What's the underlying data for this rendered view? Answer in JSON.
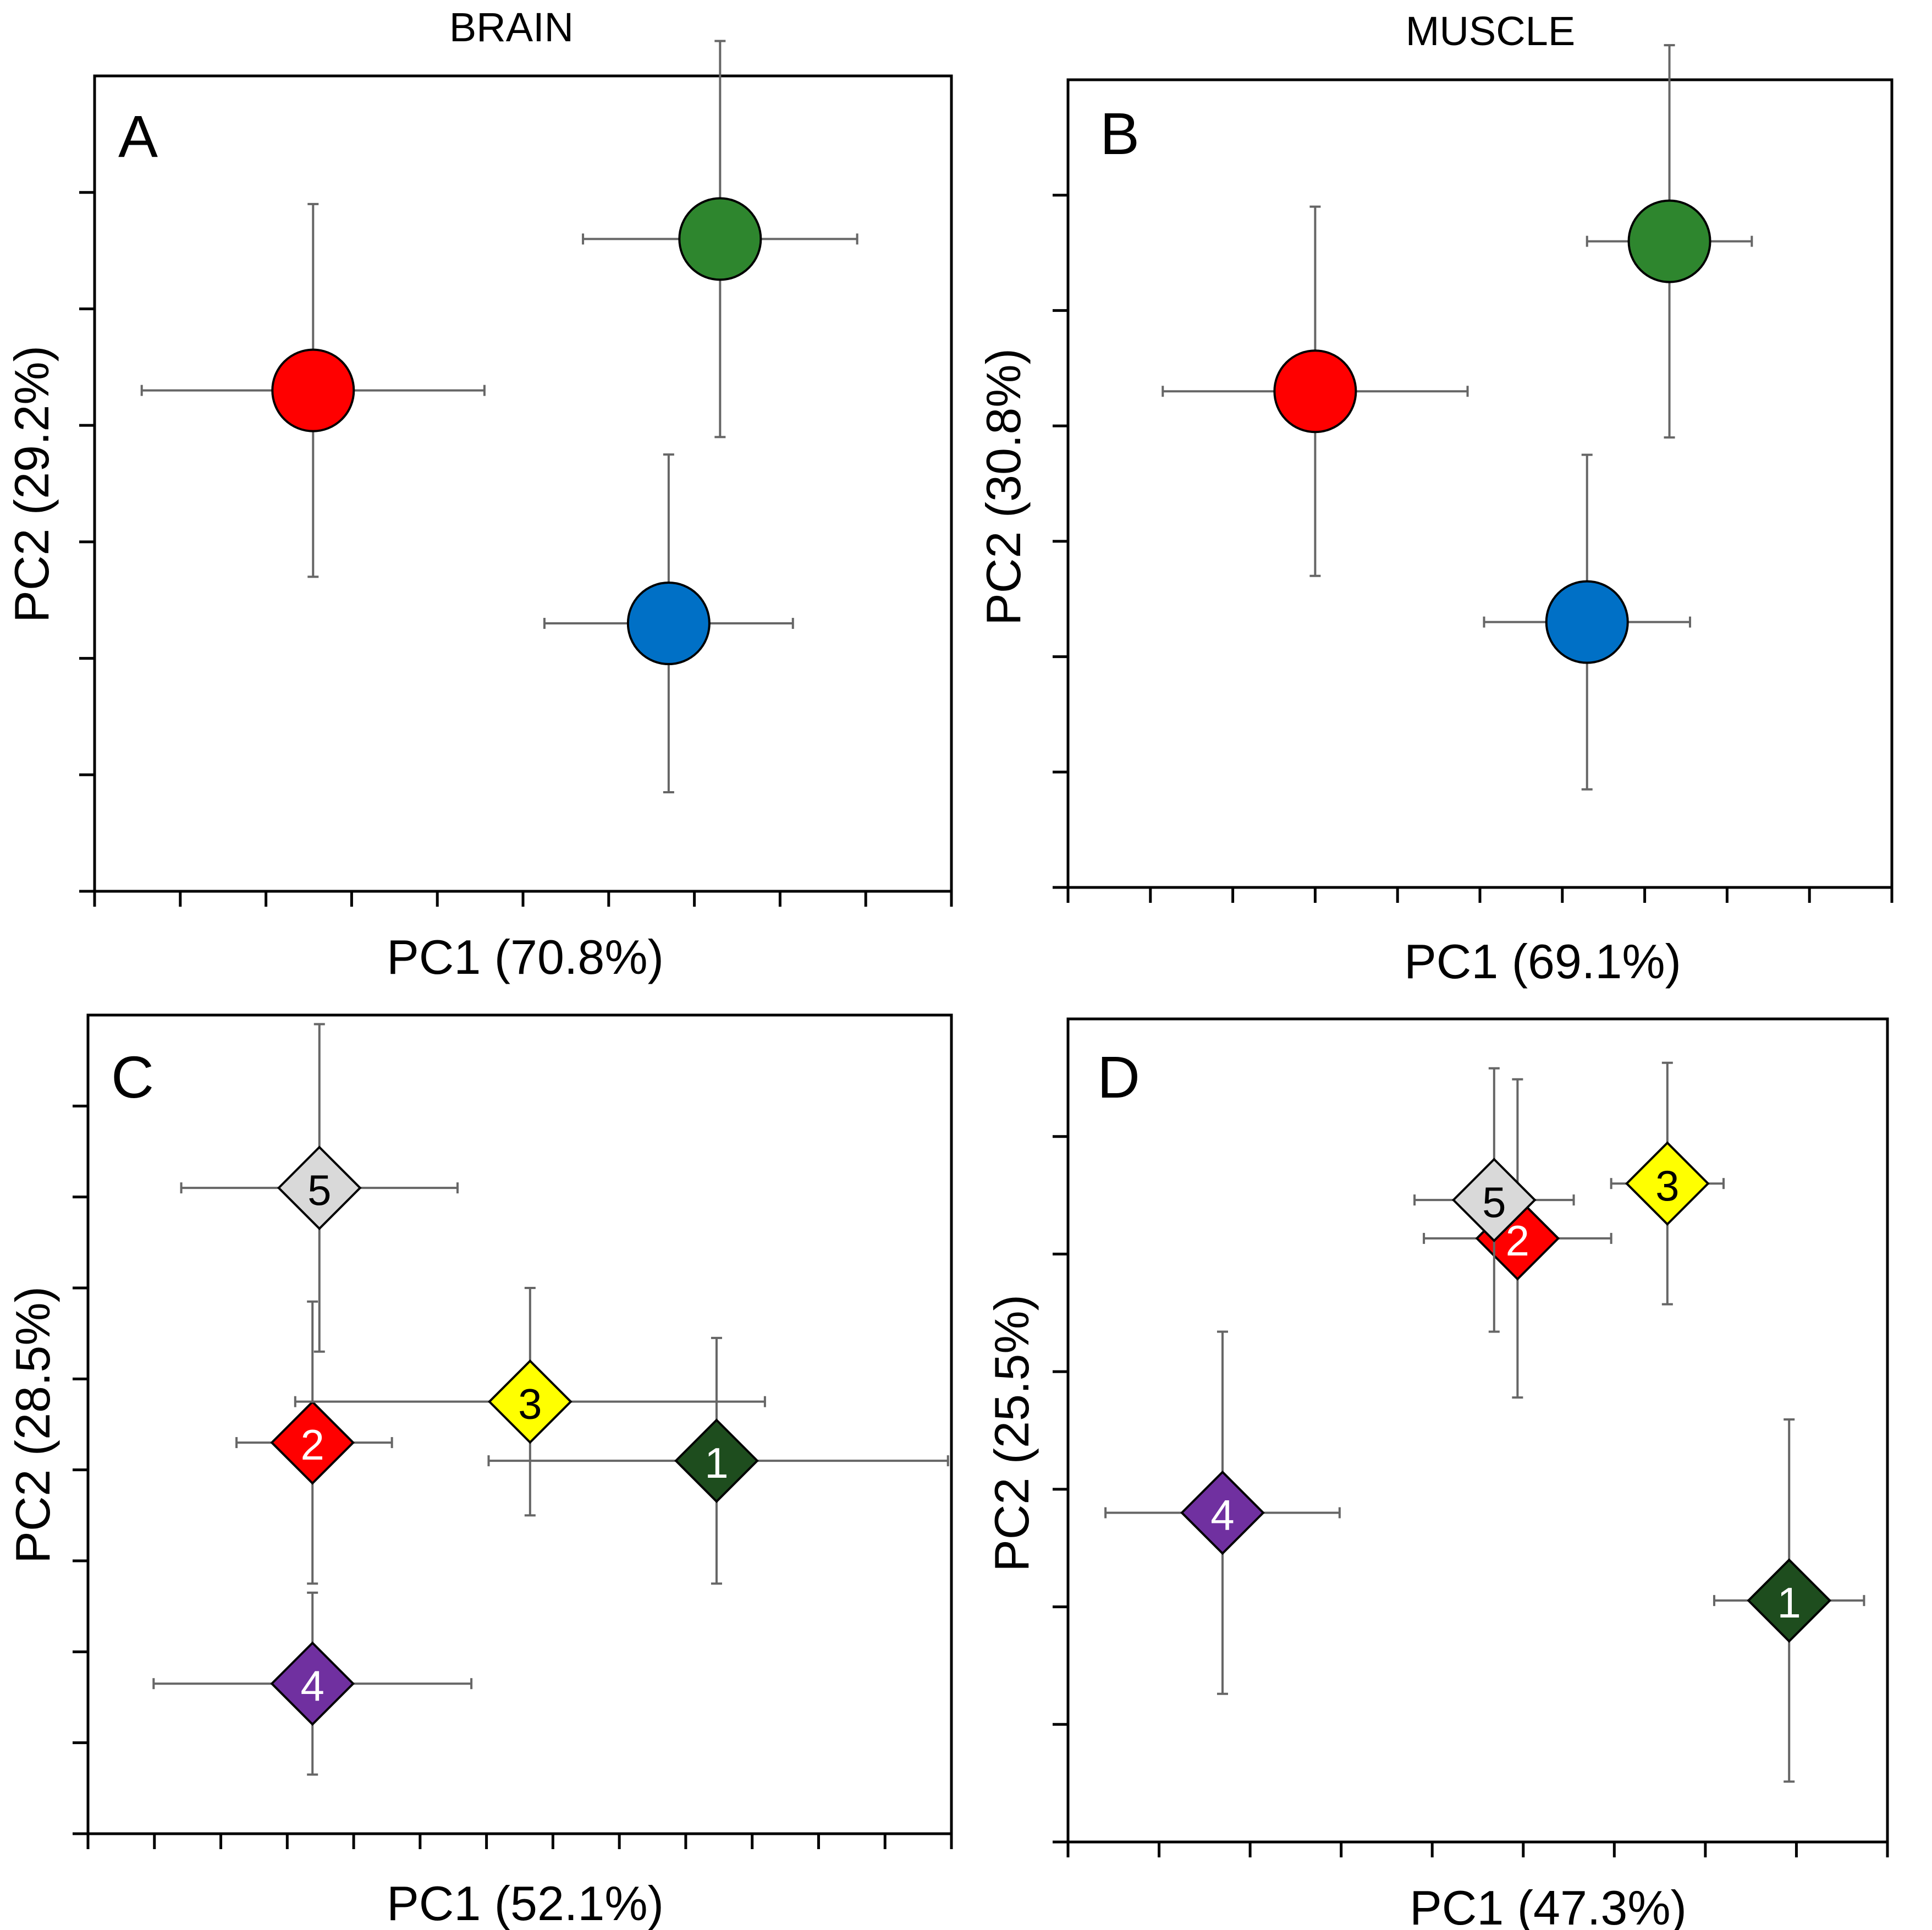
{
  "columns": {
    "left": "BRAIN",
    "right": "MUSCLE"
  },
  "chart_data": [
    {
      "panel": "A",
      "type": "scatter",
      "title": "BRAIN",
      "xlabel": "PC1 (70.8%)",
      "ylabel": "PC2 (29.2%)",
      "xlim": [
        0,
        10
      ],
      "ylim": [
        0,
        7
      ],
      "x_ticks": 11,
      "y_ticks": 8,
      "marker": "circle",
      "points": [
        {
          "label": "",
          "x": 2.55,
          "y": 4.3,
          "xerr": [
            2.0,
            2.0
          ],
          "yerr": [
            1.6,
            1.6
          ],
          "color": "#ff0000"
        },
        {
          "label": "",
          "x": 7.3,
          "y": 5.6,
          "xerr": [
            1.6,
            1.6
          ],
          "yerr": [
            1.7,
            1.7
          ],
          "color": "#2e862e"
        },
        {
          "label": "",
          "x": 6.7,
          "y": 2.3,
          "xerr": [
            1.45,
            1.45
          ],
          "yerr": [
            1.45,
            1.45
          ],
          "color": "#0070c6"
        }
      ]
    },
    {
      "panel": "B",
      "type": "scatter",
      "title": "MUSCLE",
      "xlabel": "PC1 (69.1%)",
      "ylabel": "PC2 (30.8%)",
      "xlim": [
        0,
        10
      ],
      "ylim": [
        0,
        7
      ],
      "x_ticks": 11,
      "y_ticks": 8,
      "marker": "circle",
      "points": [
        {
          "label": "",
          "x": 3.0,
          "y": 4.3,
          "xerr": [
            1.85,
            1.85
          ],
          "yerr": [
            1.6,
            1.6
          ],
          "color": "#ff0000"
        },
        {
          "label": "",
          "x": 7.3,
          "y": 5.6,
          "xerr": [
            1.0,
            1.0
          ],
          "yerr": [
            1.7,
            1.7
          ],
          "color": "#2e862e"
        },
        {
          "label": "",
          "x": 6.3,
          "y": 2.3,
          "xerr": [
            1.25,
            1.25
          ],
          "yerr": [
            1.45,
            1.45
          ],
          "color": "#0070c6"
        }
      ]
    },
    {
      "panel": "C",
      "type": "scatter",
      "xlabel": "PC1 (52.1%)",
      "ylabel": "PC2 (28.5%)",
      "xlim": [
        0,
        12.5
      ],
      "ylim": [
        0,
        9
      ],
      "x_ticks": 14,
      "y_ticks": 10,
      "marker": "diamond",
      "points": [
        {
          "label": "1",
          "x": 9.1,
          "y": 4.1,
          "xerr": [
            3.3,
            3.35
          ],
          "yerr": [
            1.35,
            1.35
          ],
          "color": "#1e4d1e",
          "text_color": "#ffffff"
        },
        {
          "label": "2",
          "x": 3.25,
          "y": 4.3,
          "xerr": [
            1.1,
            1.15
          ],
          "yerr": [
            1.55,
            1.55
          ],
          "color": "#ff0000",
          "text_color": "#ffffff"
        },
        {
          "label": "3",
          "x": 6.4,
          "y": 4.75,
          "xerr": [
            3.4,
            3.4
          ],
          "yerr": [
            1.25,
            1.25
          ],
          "color": "#ffff00",
          "text_color": "#000000"
        },
        {
          "label": "4",
          "x": 3.25,
          "y": 1.65,
          "xerr": [
            2.3,
            2.3
          ],
          "yerr": [
            1.0,
            1.0
          ],
          "color": "#7030a0",
          "text_color": "#ffffff"
        },
        {
          "label": "5",
          "x": 3.35,
          "y": 7.1,
          "xerr": [
            2.0,
            2.0
          ],
          "yerr": [
            1.8,
            1.8
          ],
          "color": "#d9d9d9",
          "text_color": "#000000"
        }
      ]
    },
    {
      "panel": "D",
      "type": "scatter",
      "xlabel": "PC1 (47.3%)",
      "ylabel": "PC2 (25.5%)",
      "xlim": [
        0,
        8.75
      ],
      "ylim": [
        0,
        7.5
      ],
      "x_ticks": 10,
      "y_ticks": 8,
      "marker": "diamond",
      "points": [
        {
          "label": "1",
          "x": 7.7,
          "y": 2.2,
          "xerr": [
            0.8,
            0.8
          ],
          "yerr": [
            1.65,
            1.65
          ],
          "color": "#1e4d1e",
          "text_color": "#ffffff"
        },
        {
          "label": "2",
          "x": 4.8,
          "y": 5.5,
          "xerr": [
            1.0,
            1.0
          ],
          "yerr": [
            1.45,
            1.45
          ],
          "color": "#ff0000",
          "text_color": "#ffffff"
        },
        {
          "label": "3",
          "x": 6.4,
          "y": 6.0,
          "xerr": [
            0.6,
            0.6
          ],
          "yerr": [
            1.1,
            1.1
          ],
          "color": "#ffff00",
          "text_color": "#000000"
        },
        {
          "label": "4",
          "x": 1.65,
          "y": 3.0,
          "xerr": [
            1.25,
            1.25
          ],
          "yerr": [
            1.65,
            1.65
          ],
          "color": "#7030a0",
          "text_color": "#ffffff"
        },
        {
          "label": "5",
          "x": 4.55,
          "y": 5.85,
          "xerr": [
            0.85,
            0.85
          ],
          "yerr": [
            1.2,
            1.2
          ],
          "color": "#d9d9d9",
          "text_color": "#000000"
        }
      ]
    }
  ]
}
